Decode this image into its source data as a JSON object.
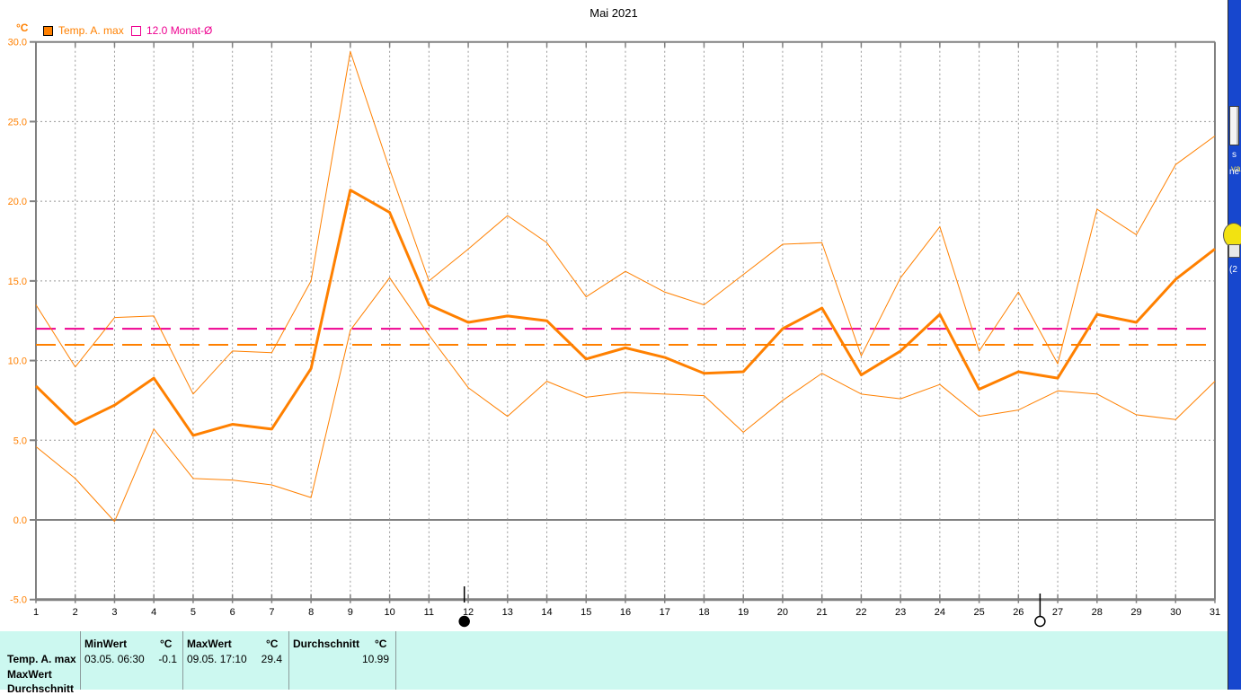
{
  "window": {
    "title": "Mai 2021"
  },
  "legend": {
    "unit": "°C",
    "items": [
      {
        "label": "Temp. A. max",
        "color": "#FF8000",
        "filled": true
      },
      {
        "label": "12.0 Monat-Ø",
        "color": "#EE0090",
        "filled": false
      }
    ]
  },
  "chart_data": {
    "type": "line",
    "title": "Mai 2021",
    "xlabel": "",
    "ylabel": "°C",
    "ylim": [
      -5.0,
      30.0
    ],
    "yticks": [
      30.0,
      25.0,
      20.0,
      15.0,
      10.0,
      5.0,
      0.0,
      -5.0
    ],
    "x": [
      1,
      2,
      3,
      4,
      5,
      6,
      7,
      8,
      9,
      10,
      11,
      12,
      13,
      14,
      15,
      16,
      17,
      18,
      19,
      20,
      21,
      22,
      23,
      24,
      25,
      26,
      27,
      28,
      29,
      30,
      31
    ],
    "series": [
      {
        "name": "temp-a-max-daily-maximum",
        "style": "thin",
        "values": [
          13.5,
          9.6,
          12.7,
          12.8,
          7.9,
          10.6,
          10.5,
          15.0,
          29.4,
          22.0,
          15.0,
          17.0,
          19.1,
          17.4,
          14.0,
          15.6,
          14.3,
          13.5,
          15.4,
          17.3,
          17.4,
          10.3,
          15.2,
          18.4,
          10.6,
          14.3,
          9.8,
          19.5,
          17.9,
          22.3,
          24.1
        ]
      },
      {
        "name": "temp-a-max-daily-average",
        "style": "thick",
        "values": [
          8.4,
          6.0,
          7.2,
          8.9,
          5.3,
          6.0,
          5.7,
          9.5,
          20.7,
          19.3,
          13.5,
          12.4,
          12.8,
          12.5,
          10.1,
          10.8,
          10.2,
          9.2,
          9.3,
          12.0,
          13.3,
          9.1,
          10.6,
          12.9,
          8.2,
          9.3,
          8.9,
          12.9,
          12.4,
          15.1,
          17.0
        ]
      },
      {
        "name": "temp-a-max-daily-minimum",
        "style": "thin",
        "values": [
          4.6,
          2.6,
          -0.1,
          5.7,
          2.6,
          2.5,
          2.2,
          1.4,
          11.9,
          15.2,
          11.6,
          8.3,
          6.5,
          8.7,
          7.7,
          8.0,
          7.9,
          7.8,
          5.5,
          7.5,
          9.2,
          7.9,
          7.6,
          8.5,
          6.5,
          6.9,
          8.1,
          7.9,
          6.6,
          6.3,
          8.7
        ]
      }
    ],
    "reference_lines": [
      {
        "label": "12.0 Monat-Ø",
        "value": 12.0,
        "color": "#EE0090"
      },
      {
        "label": "Durchschnitt",
        "value": 10.99,
        "color": "#FF8000"
      }
    ],
    "moon_markers": [
      {
        "day": 11.9,
        "phase": "new"
      },
      {
        "day": 26.55,
        "phase": "full"
      }
    ],
    "colors": {
      "series": "#FF8000",
      "axis": "#808080",
      "grid": "#989898",
      "tick_label_y": "#FF8000",
      "tick_label_x": "#000000"
    },
    "legend_position": "top-left",
    "grid": true
  },
  "stats_table": {
    "row_labels": [
      "Temp. A. max",
      "MaxWert",
      "Durchschnitt"
    ],
    "sections": [
      {
        "header": "MinWert",
        "unit": "°C",
        "time": "03.05.  06:30",
        "value": "-0.1"
      },
      {
        "header": "MaxWert",
        "unit": "°C",
        "time": "09.05.  17:10",
        "value": "29.4"
      },
      {
        "header": "Durchschnitt",
        "unit": "°C",
        "time": "",
        "value": "10.99"
      }
    ]
  },
  "desktop": {
    "labels": {
      "top": "va",
      "doc1": "s",
      "doc2": "ne",
      "bulb": "(2"
    }
  }
}
